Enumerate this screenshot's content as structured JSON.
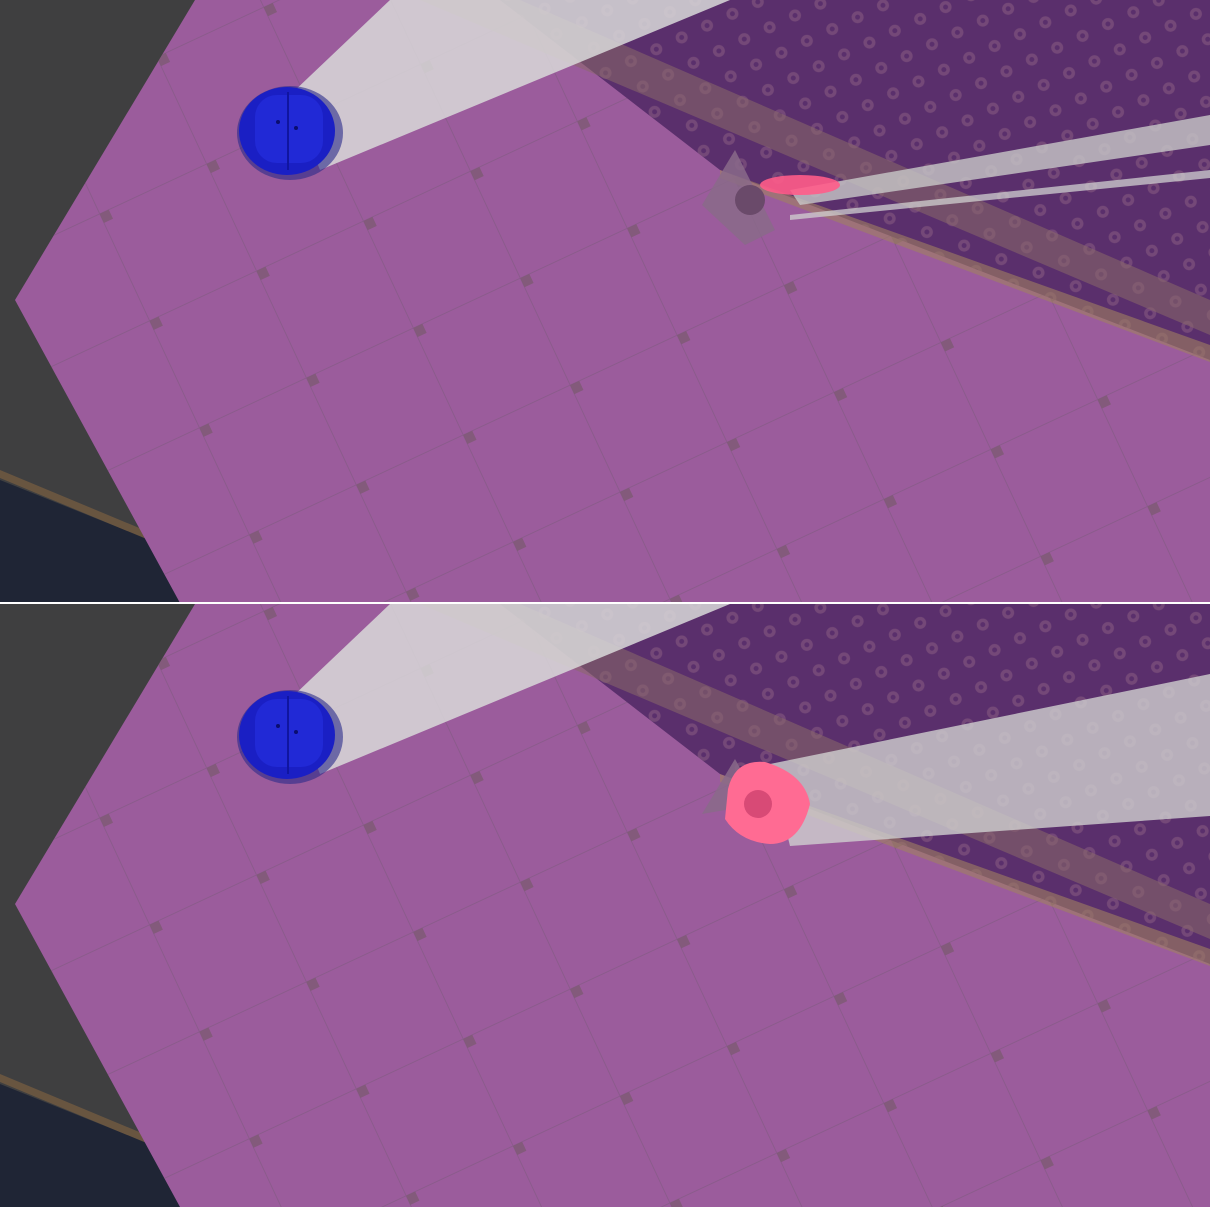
{
  "scene": {
    "kind": "top-down robot navigation simulation",
    "frames": [
      {
        "id": "frame-1",
        "agent": {
          "type": "robot",
          "color": "#1a1fc4",
          "icon": "robot-icon"
        },
        "target": {
          "type": "human",
          "color": "#ff5c8a",
          "highlight_level": "low",
          "icon": "person-icon"
        }
      },
      {
        "id": "frame-2",
        "agent": {
          "type": "robot",
          "color": "#1a1fc4",
          "icon": "robot-icon"
        },
        "target": {
          "type": "human",
          "color": "#ff5c8a",
          "highlight_level": "high",
          "icon": "person-icon"
        }
      }
    ]
  },
  "colors": {
    "region_overlay": "#a55aa5",
    "floor": "#9a7a8f",
    "wall_shadow": "#3f3f40",
    "carpet": "#5a2f6c",
    "carpet_border": "#8a6a5a",
    "view_cone": "#d9d9d9",
    "robot": "#1a1fc4",
    "human": "#ff6b93"
  }
}
